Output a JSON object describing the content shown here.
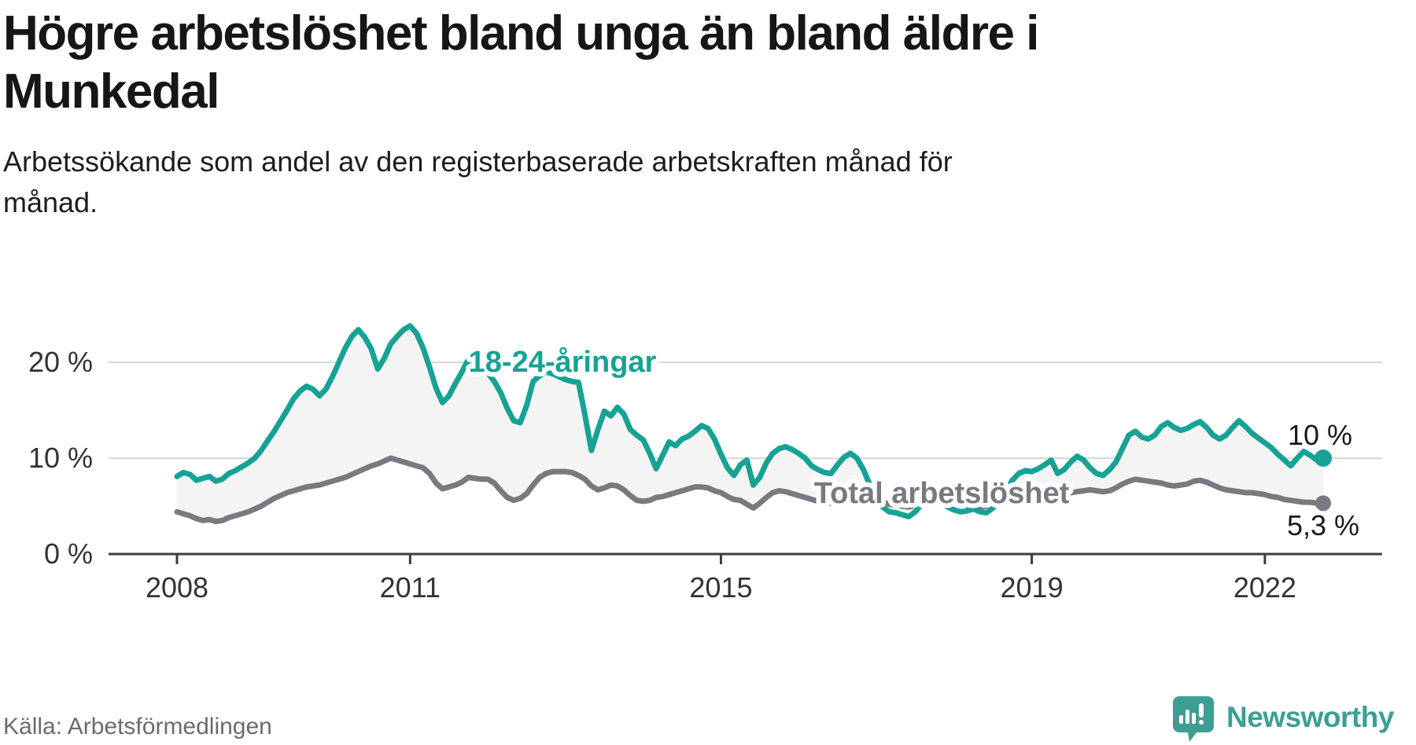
{
  "header": {
    "title_lines": [
      "Högre arbetslöshet bland unga än bland äldre i",
      "Munkedal"
    ],
    "subtitle_lines": [
      "Arbetssökande som andel av den registerbaserade arbetskraften månad för",
      "månad."
    ]
  },
  "footer": {
    "source": "Källa: Arbetsförmedlingen",
    "logo_text": "Newsworthy"
  },
  "colors": {
    "young_line": "#16a294",
    "total_line": "#7a7980",
    "between_fill": "#f4f4f4",
    "gridline": "#d9d9d9",
    "axis": "#3c3c3c",
    "tick_label": "#333333",
    "end_label": "#1a1a1a",
    "logo_teal": "#3d9e94"
  },
  "chart_data": {
    "type": "line",
    "unit": "%",
    "frequency": "monthly",
    "x_start": "2008-01",
    "x_end": "2022-10",
    "ylim": [
      0,
      25.5
    ],
    "grid": "horizontal",
    "y_ticks": [
      {
        "label": "20 %",
        "value": 20
      },
      {
        "label": "10 %",
        "value": 10
      },
      {
        "label": "0 %",
        "value": 0
      }
    ],
    "x_ticks": [
      {
        "label": "2008",
        "year": 2008
      },
      {
        "label": "2011",
        "year": 2011
      },
      {
        "label": "2015",
        "year": 2015
      },
      {
        "label": "2019",
        "year": 2019
      },
      {
        "label": "2022",
        "year": 2022
      }
    ],
    "series": [
      {
        "name": "18-24-åringar",
        "role": "young",
        "end_label": "10 %",
        "values": [
          8.1,
          8.5,
          8.3,
          7.7,
          7.9,
          8.1,
          7.6,
          7.8,
          8.4,
          8.7,
          9.1,
          9.5,
          10.0,
          10.8,
          11.8,
          12.8,
          13.9,
          15.0,
          16.2,
          17.0,
          17.5,
          17.2,
          16.5,
          17.2,
          18.5,
          20.0,
          21.5,
          22.7,
          23.4,
          22.6,
          21.4,
          19.3,
          20.4,
          21.9,
          22.7,
          23.4,
          23.8,
          23.0,
          21.5,
          19.5,
          17.3,
          15.8,
          16.5,
          17.8,
          19.0,
          20.3,
          19.9,
          19.3,
          18.9,
          18.0,
          16.8,
          15.2,
          13.9,
          13.7,
          15.5,
          18.0,
          18.6,
          19.0,
          18.8,
          18.5,
          18.2,
          18.0,
          17.9,
          14.5,
          10.8,
          13.0,
          14.9,
          14.4,
          15.3,
          14.6,
          13.0,
          12.4,
          11.9,
          10.5,
          8.9,
          10.3,
          11.7,
          11.3,
          12.0,
          12.3,
          12.8,
          13.4,
          13.1,
          12.0,
          10.4,
          9.0,
          8.2,
          9.3,
          9.8,
          7.2,
          8.0,
          9.5,
          10.5,
          11.0,
          11.2,
          10.9,
          10.5,
          10.0,
          9.2,
          8.8,
          8.5,
          8.4,
          9.3,
          10.1,
          10.5,
          10.0,
          8.8,
          7.2,
          5.8,
          4.9,
          4.4,
          4.3,
          4.1,
          3.9,
          4.4,
          5.2,
          6.4,
          6.1,
          5.4,
          4.9,
          4.6,
          4.4,
          4.5,
          4.7,
          4.4,
          4.3,
          4.8,
          5.6,
          6.6,
          7.7,
          8.4,
          8.7,
          8.6,
          8.9,
          9.3,
          9.8,
          8.4,
          8.8,
          9.6,
          10.2,
          9.8,
          9.0,
          8.4,
          8.2,
          8.8,
          9.6,
          11.0,
          12.4,
          12.8,
          12.2,
          12.0,
          12.4,
          13.3,
          13.7,
          13.2,
          12.9,
          13.1,
          13.5,
          13.8,
          13.2,
          12.4,
          12.0,
          12.4,
          13.2,
          13.9,
          13.3,
          12.6,
          12.1,
          11.6,
          11.1,
          10.4,
          9.8,
          9.2,
          10.0,
          10.7,
          10.3,
          9.8,
          10.0
        ]
      },
      {
        "name": "Total arbetslöshet",
        "role": "total",
        "end_label": "5,3 %",
        "values": [
          4.4,
          4.2,
          4.0,
          3.7,
          3.5,
          3.6,
          3.4,
          3.5,
          3.8,
          4.0,
          4.2,
          4.4,
          4.7,
          5.0,
          5.4,
          5.8,
          6.1,
          6.4,
          6.6,
          6.8,
          7.0,
          7.1,
          7.2,
          7.4,
          7.6,
          7.8,
          8.0,
          8.3,
          8.6,
          8.9,
          9.2,
          9.4,
          9.7,
          10.0,
          9.8,
          9.6,
          9.4,
          9.2,
          9.0,
          8.4,
          7.4,
          6.8,
          7.0,
          7.2,
          7.5,
          8.0,
          7.9,
          7.8,
          7.8,
          7.4,
          6.6,
          5.9,
          5.6,
          5.8,
          6.3,
          7.2,
          8.0,
          8.4,
          8.6,
          8.6,
          8.6,
          8.5,
          8.2,
          7.8,
          7.1,
          6.7,
          6.9,
          7.2,
          7.1,
          6.7,
          6.1,
          5.6,
          5.5,
          5.6,
          5.9,
          6.0,
          6.2,
          6.4,
          6.6,
          6.8,
          7.0,
          7.0,
          6.9,
          6.6,
          6.4,
          6.0,
          5.7,
          5.6,
          5.2,
          4.8,
          5.3,
          5.9,
          6.4,
          6.6,
          6.5,
          6.3,
          6.1,
          5.9,
          5.7,
          5.5,
          5.4,
          5.3,
          5.5,
          5.7,
          5.9,
          5.8,
          5.7,
          5.6,
          5.5,
          5.4,
          5.2,
          5.1,
          5.0,
          4.9,
          5.1,
          5.3,
          5.5,
          5.6,
          5.5,
          5.4,
          5.3,
          5.2,
          5.1,
          5.0,
          4.9,
          5.0,
          5.2,
          5.4,
          5.6,
          5.7,
          5.8,
          5.9,
          5.9,
          6.0,
          6.1,
          6.2,
          6.3,
          6.3,
          6.4,
          6.5,
          6.6,
          6.7,
          6.6,
          6.5,
          6.6,
          6.9,
          7.3,
          7.6,
          7.8,
          7.7,
          7.6,
          7.5,
          7.4,
          7.2,
          7.1,
          7.2,
          7.3,
          7.6,
          7.7,
          7.5,
          7.2,
          6.9,
          6.7,
          6.6,
          6.5,
          6.4,
          6.4,
          6.3,
          6.2,
          6.0,
          5.9,
          5.7,
          5.6,
          5.5,
          5.4,
          5.4,
          5.3,
          5.3
        ]
      }
    ]
  }
}
